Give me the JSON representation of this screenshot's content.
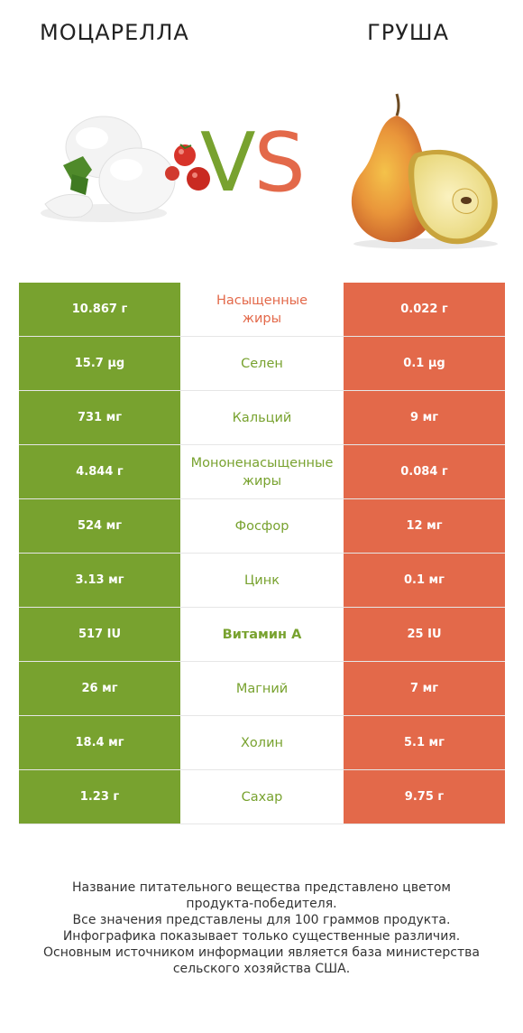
{
  "header": {
    "left_title": "МОЦАРЕЛЛА",
    "right_title": "ГРУША",
    "vs_v": "V",
    "vs_s": "S"
  },
  "colors": {
    "mozzarella": "#78a22f",
    "pear": "#e3694a"
  },
  "icons": {
    "left": "mozzarella-illustration",
    "right": "pear-illustration"
  },
  "rows": [
    {
      "left": "10.867 г",
      "nutrient": "Насыщенные жиры",
      "nutrient_line1": "Насыщенные",
      "nutrient_line2": "жиры",
      "right": "0.022 г",
      "winner": "pear"
    },
    {
      "left": "15.7 µg",
      "nutrient": "Селен",
      "right": "0.1 µg",
      "winner": "mozzarella"
    },
    {
      "left": "731 мг",
      "nutrient": "Кальций",
      "right": "9 мг",
      "winner": "mozzarella"
    },
    {
      "left": "4.844 г",
      "nutrient": "Мононенасыщенные жиры",
      "nutrient_line1": "Мононенасыщенные",
      "nutrient_line2": "жиры",
      "right": "0.084 г",
      "winner": "mozzarella"
    },
    {
      "left": "524 мг",
      "nutrient": "Фосфор",
      "right": "12 мг",
      "winner": "mozzarella"
    },
    {
      "left": "3.13 мг",
      "nutrient": "Цинк",
      "right": "0.1 мг",
      "winner": "mozzarella"
    },
    {
      "left": "517 IU",
      "nutrient": "Витамин A",
      "right": "25 IU",
      "winner": "mozzarella",
      "bold": true
    },
    {
      "left": "26 мг",
      "nutrient": "Магний",
      "right": "7 мг",
      "winner": "mozzarella"
    },
    {
      "left": "18.4 мг",
      "nutrient": "Холин",
      "right": "5.1 мг",
      "winner": "mozzarella"
    },
    {
      "left": "1.23 г",
      "nutrient": "Сахар",
      "right": "9.75 г",
      "winner": "mozzarella"
    }
  ],
  "footer": {
    "line1": "Название питательного вещества представлено цветом",
    "line2": "продукта-победителя.",
    "line3": "Все значения представлены для 100 граммов продукта.",
    "line4": "Инфографика показывает только существенные различия.",
    "line5": "Основным источником информации является база министерства",
    "line6": "сельского хозяйства США."
  }
}
